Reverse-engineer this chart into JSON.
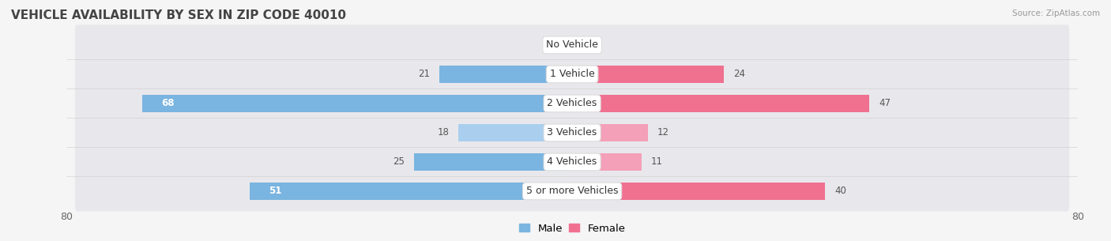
{
  "title": "Vehicle Availability by Sex in Zip Code 40010",
  "source": "Source: ZipAtlas.com",
  "categories": [
    "No Vehicle",
    "1 Vehicle",
    "2 Vehicles",
    "3 Vehicles",
    "4 Vehicles",
    "5 or more Vehicles"
  ],
  "male_values": [
    0,
    21,
    68,
    18,
    25,
    51
  ],
  "female_values": [
    0,
    24,
    47,
    12,
    11,
    40
  ],
  "male_color": "#7ab4e0",
  "female_color": "#f07090",
  "male_color_light": "#aacfee",
  "female_color_light": "#f4a0b8",
  "male_label": "Male",
  "female_label": "Female",
  "xlim": 80,
  "background_color": "#f5f5f5",
  "row_bg_color": "#ebebeb",
  "title_fontsize": 11,
  "tick_fontsize": 9,
  "value_fontsize": 8.5,
  "category_fontsize": 9
}
